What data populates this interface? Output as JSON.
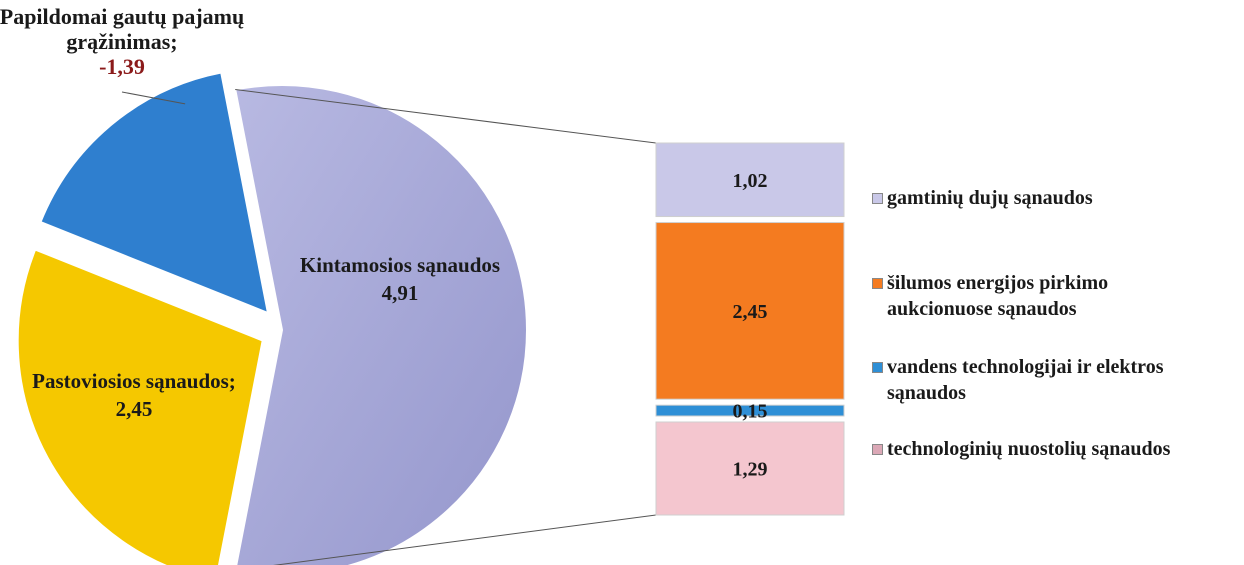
{
  "chart_data": [
    {
      "type": "pie",
      "slices": [
        {
          "label": "Kintamosios sąnaudos",
          "value": 4.91,
          "value_label": "4,91",
          "color": "#a3a5d6"
        },
        {
          "label": "Pastoviosios sąnaudos;",
          "value": 2.45,
          "value_label": "2,45",
          "color": "#f5c800"
        },
        {
          "label": "Papildomai gautų pajamų grąžinimas;",
          "value": -1.39,
          "value_label": "-1,39",
          "color": "#2f7fcf",
          "value_label_color": "#8b1a1a"
        }
      ]
    },
    {
      "type": "bar",
      "stacked": true,
      "breakdown_of": "Kintamosios sąnaudos",
      "segments": [
        {
          "label": "gamtinių dujų sąnaudos",
          "value": 1.02,
          "value_label": "1,02",
          "color": "#c9c8e8"
        },
        {
          "label": "šilumos energijos pirkimo aukcionuose sąnaudos",
          "value": 2.45,
          "value_label": "2,45",
          "color": "#f47b20"
        },
        {
          "label": "vandens technologijai ir elektros sąnaudos",
          "value": 0.15,
          "value_label": "0,15",
          "color": "#2e8fd6"
        },
        {
          "label": "technologinių nuostolių sąnaudos",
          "value": 1.29,
          "value_label": "1,29",
          "color": "#f4c6cf"
        }
      ]
    }
  ],
  "legend": [
    {
      "text": "gamtinių dujų sąnaudos",
      "color": "#c9c8e8"
    },
    {
      "text": "šilumos energijos pirkimo\naukcionuose sąnaudos",
      "color": "#f47b20"
    },
    {
      "text": "vandens technologijai ir elektros\nsąnaudos",
      "color": "#2e8fd6"
    },
    {
      "text": "technologinių nuostolių sąnaudos",
      "color": "#dba8b6"
    }
  ]
}
